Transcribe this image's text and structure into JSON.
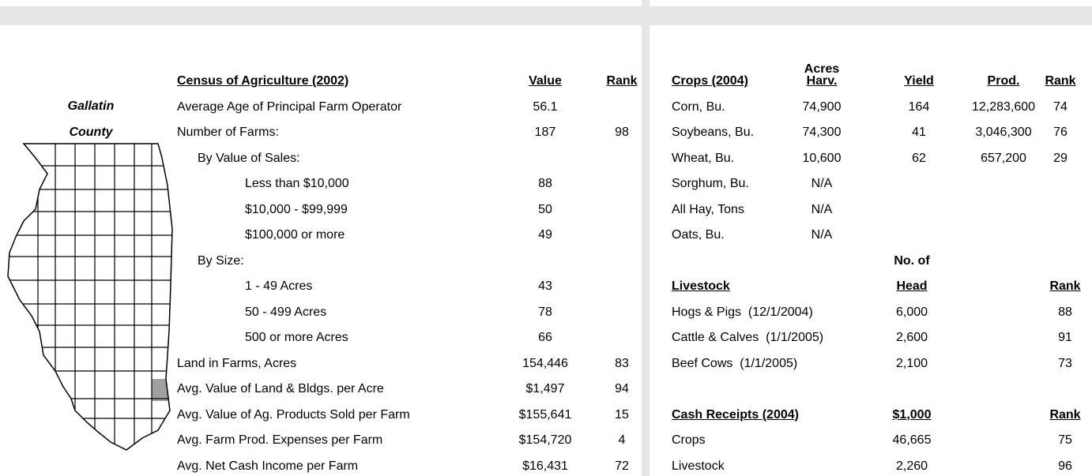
{
  "county": {
    "line1": "Gallatin",
    "line2": "County"
  },
  "census": {
    "header": [
      "Census of Agriculture (2002)",
      "Value",
      "Rank"
    ],
    "rows": [
      [
        "Average Age of Principal Farm Operator",
        "56.1",
        ""
      ],
      [
        "Number of Farms:",
        "187",
        "98"
      ],
      [
        "By Value of Sales:",
        "",
        ""
      ],
      [
        "Less than $10,000",
        "88",
        ""
      ],
      [
        "$10,000 - $99,999",
        "50",
        ""
      ],
      [
        "$100,000 or more",
        "49",
        ""
      ],
      [
        "By Size:",
        "",
        ""
      ],
      [
        "1 - 49 Acres",
        "43",
        ""
      ],
      [
        "50 - 499 Acres",
        "78",
        ""
      ],
      [
        "500 or more Acres",
        "66",
        ""
      ],
      [
        "Land in Farms, Acres",
        "154,446",
        "83"
      ],
      [
        "Avg. Value of Land & Bldgs. per Acre",
        "$1,497",
        "94"
      ],
      [
        "Avg. Value of Ag. Products Sold per Farm",
        "$155,641",
        "15"
      ],
      [
        "Avg. Farm Prod. Expenses per Farm",
        "$154,720",
        "4"
      ],
      [
        "Avg. Net Cash Income per Farm",
        "$16,431",
        "72"
      ]
    ]
  },
  "crops": {
    "header_top": "Acres",
    "header": [
      "Crops (2004)",
      "Harv.",
      "Yield",
      "Prod.",
      "Rank"
    ],
    "rows": [
      [
        "Corn, Bu.",
        "74,900",
        "164",
        "12,283,600",
        "74"
      ],
      [
        "Soybeans, Bu.",
        "74,300",
        "41",
        "3,046,300",
        "76"
      ],
      [
        "Wheat, Bu.",
        "10,600",
        "62",
        "657,200",
        "29"
      ],
      [
        "Sorghum, Bu.",
        "N/A",
        "",
        "",
        ""
      ],
      [
        "All Hay, Tons",
        "N/A",
        "",
        "",
        ""
      ],
      [
        "Oats, Bu.",
        "N/A",
        "",
        "",
        ""
      ]
    ]
  },
  "livestock": {
    "header_top": "No. of",
    "header": [
      "Livestock",
      "Head",
      "Rank"
    ],
    "rows": [
      [
        "Hogs & Pigs  (12/1/2004)",
        "6,000",
        "88"
      ],
      [
        "Cattle & Calves  (1/1/2005)",
        "2,600",
        "91"
      ],
      [
        "Beef Cows  (1/1/2005)",
        "2,100",
        "73"
      ]
    ]
  },
  "cash_receipts": {
    "header": [
      "Cash Receipts (2004)",
      "$1,000",
      "Rank"
    ],
    "rows": [
      [
        "Crops",
        "46,665",
        "75"
      ],
      [
        "Livestock",
        "2,260",
        "96"
      ]
    ]
  }
}
